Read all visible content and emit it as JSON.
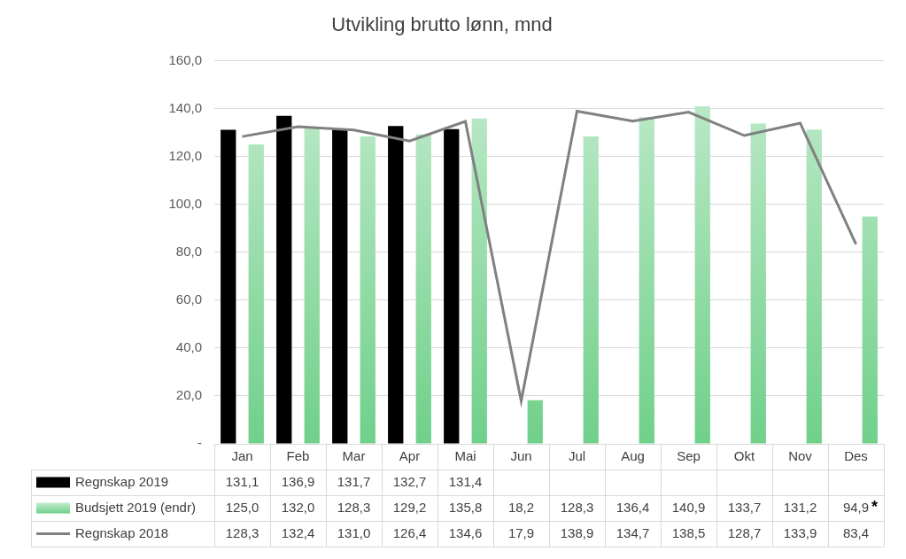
{
  "chart_data": {
    "type": "bar",
    "title": "Utvikling brutto lønn, mnd",
    "categories": [
      "Jan",
      "Feb",
      "Mar",
      "Apr",
      "Mai",
      "Jun",
      "Jul",
      "Aug",
      "Sep",
      "Okt",
      "Nov",
      "Des"
    ],
    "series": [
      {
        "name": "Regnskap 2019",
        "type": "bar",
        "color": "#000000",
        "values": [
          131.1,
          136.9,
          131.7,
          132.7,
          131.4,
          null,
          null,
          null,
          null,
          null,
          null,
          null
        ],
        "value_labels": [
          "131,1",
          "136,9",
          "131,7",
          "132,7",
          "131,4",
          null,
          null,
          null,
          null,
          null,
          null,
          null
        ]
      },
      {
        "name": "Budsjett 2019 (endr)",
        "type": "bar",
        "color": "#70d08a",
        "values": [
          125.0,
          132.0,
          128.3,
          129.2,
          135.8,
          18.2,
          128.3,
          136.4,
          140.9,
          133.7,
          131.2,
          94.9
        ],
        "value_labels": [
          "125,0",
          "132,0",
          "128,3",
          "129,2",
          "135,8",
          "18,2",
          "128,3",
          "136,4",
          "140,9",
          "133,7",
          "131,2",
          "94,9"
        ]
      },
      {
        "name": "Regnskap 2018",
        "type": "line",
        "color": "#808080",
        "line_style": "solid",
        "values": [
          128.3,
          132.4,
          131.0,
          126.4,
          134.6,
          17.9,
          138.9,
          134.7,
          138.5,
          128.7,
          133.9,
          83.4
        ],
        "value_labels": [
          "128,3",
          "132,4",
          "131,0",
          "126,4",
          "134,6",
          "17,9",
          "138,9",
          "134,7",
          "138,5",
          "128,7",
          "133,9",
          "83,4"
        ]
      }
    ],
    "annotations": [
      {
        "text": "*",
        "series": "Budsjett 2019 (endr)",
        "category": "Des"
      }
    ],
    "ylim": [
      0,
      160
    ],
    "yticks": [
      {
        "value": 0,
        "label": "-"
      },
      {
        "value": 20,
        "label": "20,0"
      },
      {
        "value": 40,
        "label": "40,0"
      },
      {
        "value": 60,
        "label": "60,0"
      },
      {
        "value": 80,
        "label": "80,0"
      },
      {
        "value": 100,
        "label": "100,0"
      },
      {
        "value": 120,
        "label": "120,0"
      },
      {
        "value": 140,
        "label": "140,0"
      },
      {
        "value": 160,
        "label": "160,0"
      }
    ],
    "grid": true,
    "legend": "bottom"
  }
}
